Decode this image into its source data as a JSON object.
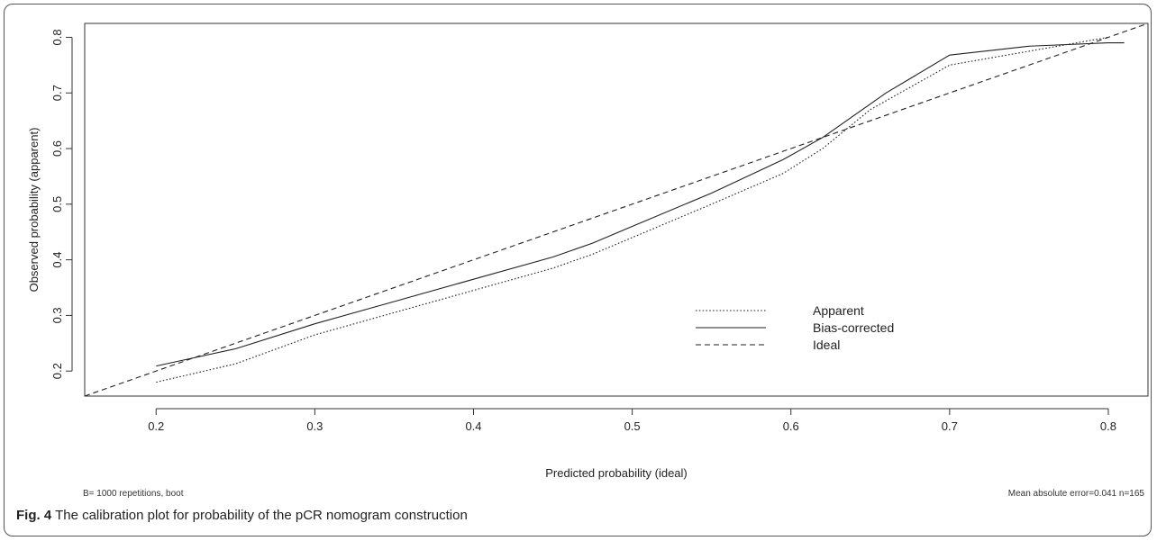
{
  "chart_data": {
    "type": "line",
    "xlabel": "Predicted probability (ideal)",
    "ylabel": "Observed probability (apparent)",
    "xlim": [
      0.155,
      0.825
    ],
    "ylim": [
      0.155,
      0.825
    ],
    "x_ticks": [
      "0.2",
      "0.3",
      "0.4",
      "0.5",
      "0.6",
      "0.7",
      "0.8"
    ],
    "y_ticks": [
      "0.2",
      "0.3",
      "0.4",
      "0.5",
      "0.6",
      "0.7",
      "0.8"
    ],
    "legend_position": "center-right",
    "grid": false,
    "series": [
      {
        "name": "Apparent",
        "style": "dotted",
        "points": [
          [
            0.2,
            0.18
          ],
          [
            0.25,
            0.213
          ],
          [
            0.3,
            0.265
          ],
          [
            0.35,
            0.305
          ],
          [
            0.4,
            0.345
          ],
          [
            0.45,
            0.385
          ],
          [
            0.475,
            0.41
          ],
          [
            0.5,
            0.44
          ],
          [
            0.55,
            0.5
          ],
          [
            0.595,
            0.555
          ],
          [
            0.62,
            0.6
          ],
          [
            0.65,
            0.67
          ],
          [
            0.7,
            0.75
          ],
          [
            0.75,
            0.775
          ],
          [
            0.8,
            0.8
          ]
        ]
      },
      {
        "name": "Bias-corrected",
        "style": "solid",
        "points": [
          [
            0.2,
            0.209
          ],
          [
            0.25,
            0.24
          ],
          [
            0.3,
            0.285
          ],
          [
            0.35,
            0.325
          ],
          [
            0.4,
            0.365
          ],
          [
            0.45,
            0.405
          ],
          [
            0.475,
            0.43
          ],
          [
            0.5,
            0.46
          ],
          [
            0.55,
            0.52
          ],
          [
            0.595,
            0.58
          ],
          [
            0.62,
            0.62
          ],
          [
            0.66,
            0.7
          ],
          [
            0.7,
            0.768
          ],
          [
            0.75,
            0.784
          ],
          [
            0.8,
            0.79
          ],
          [
            0.81,
            0.79
          ]
        ]
      },
      {
        "name": "Ideal",
        "style": "dashed",
        "points": [
          [
            0.155,
            0.155
          ],
          [
            0.825,
            0.825
          ]
        ]
      }
    ],
    "annotations": {
      "left_note": "B= 1000 repetitions, boot",
      "right_note": "Mean absolute error=0.041 n=165"
    }
  },
  "caption": {
    "label": "Fig. 4",
    "text": " The calibration plot for probability of the pCR nomogram construction"
  }
}
